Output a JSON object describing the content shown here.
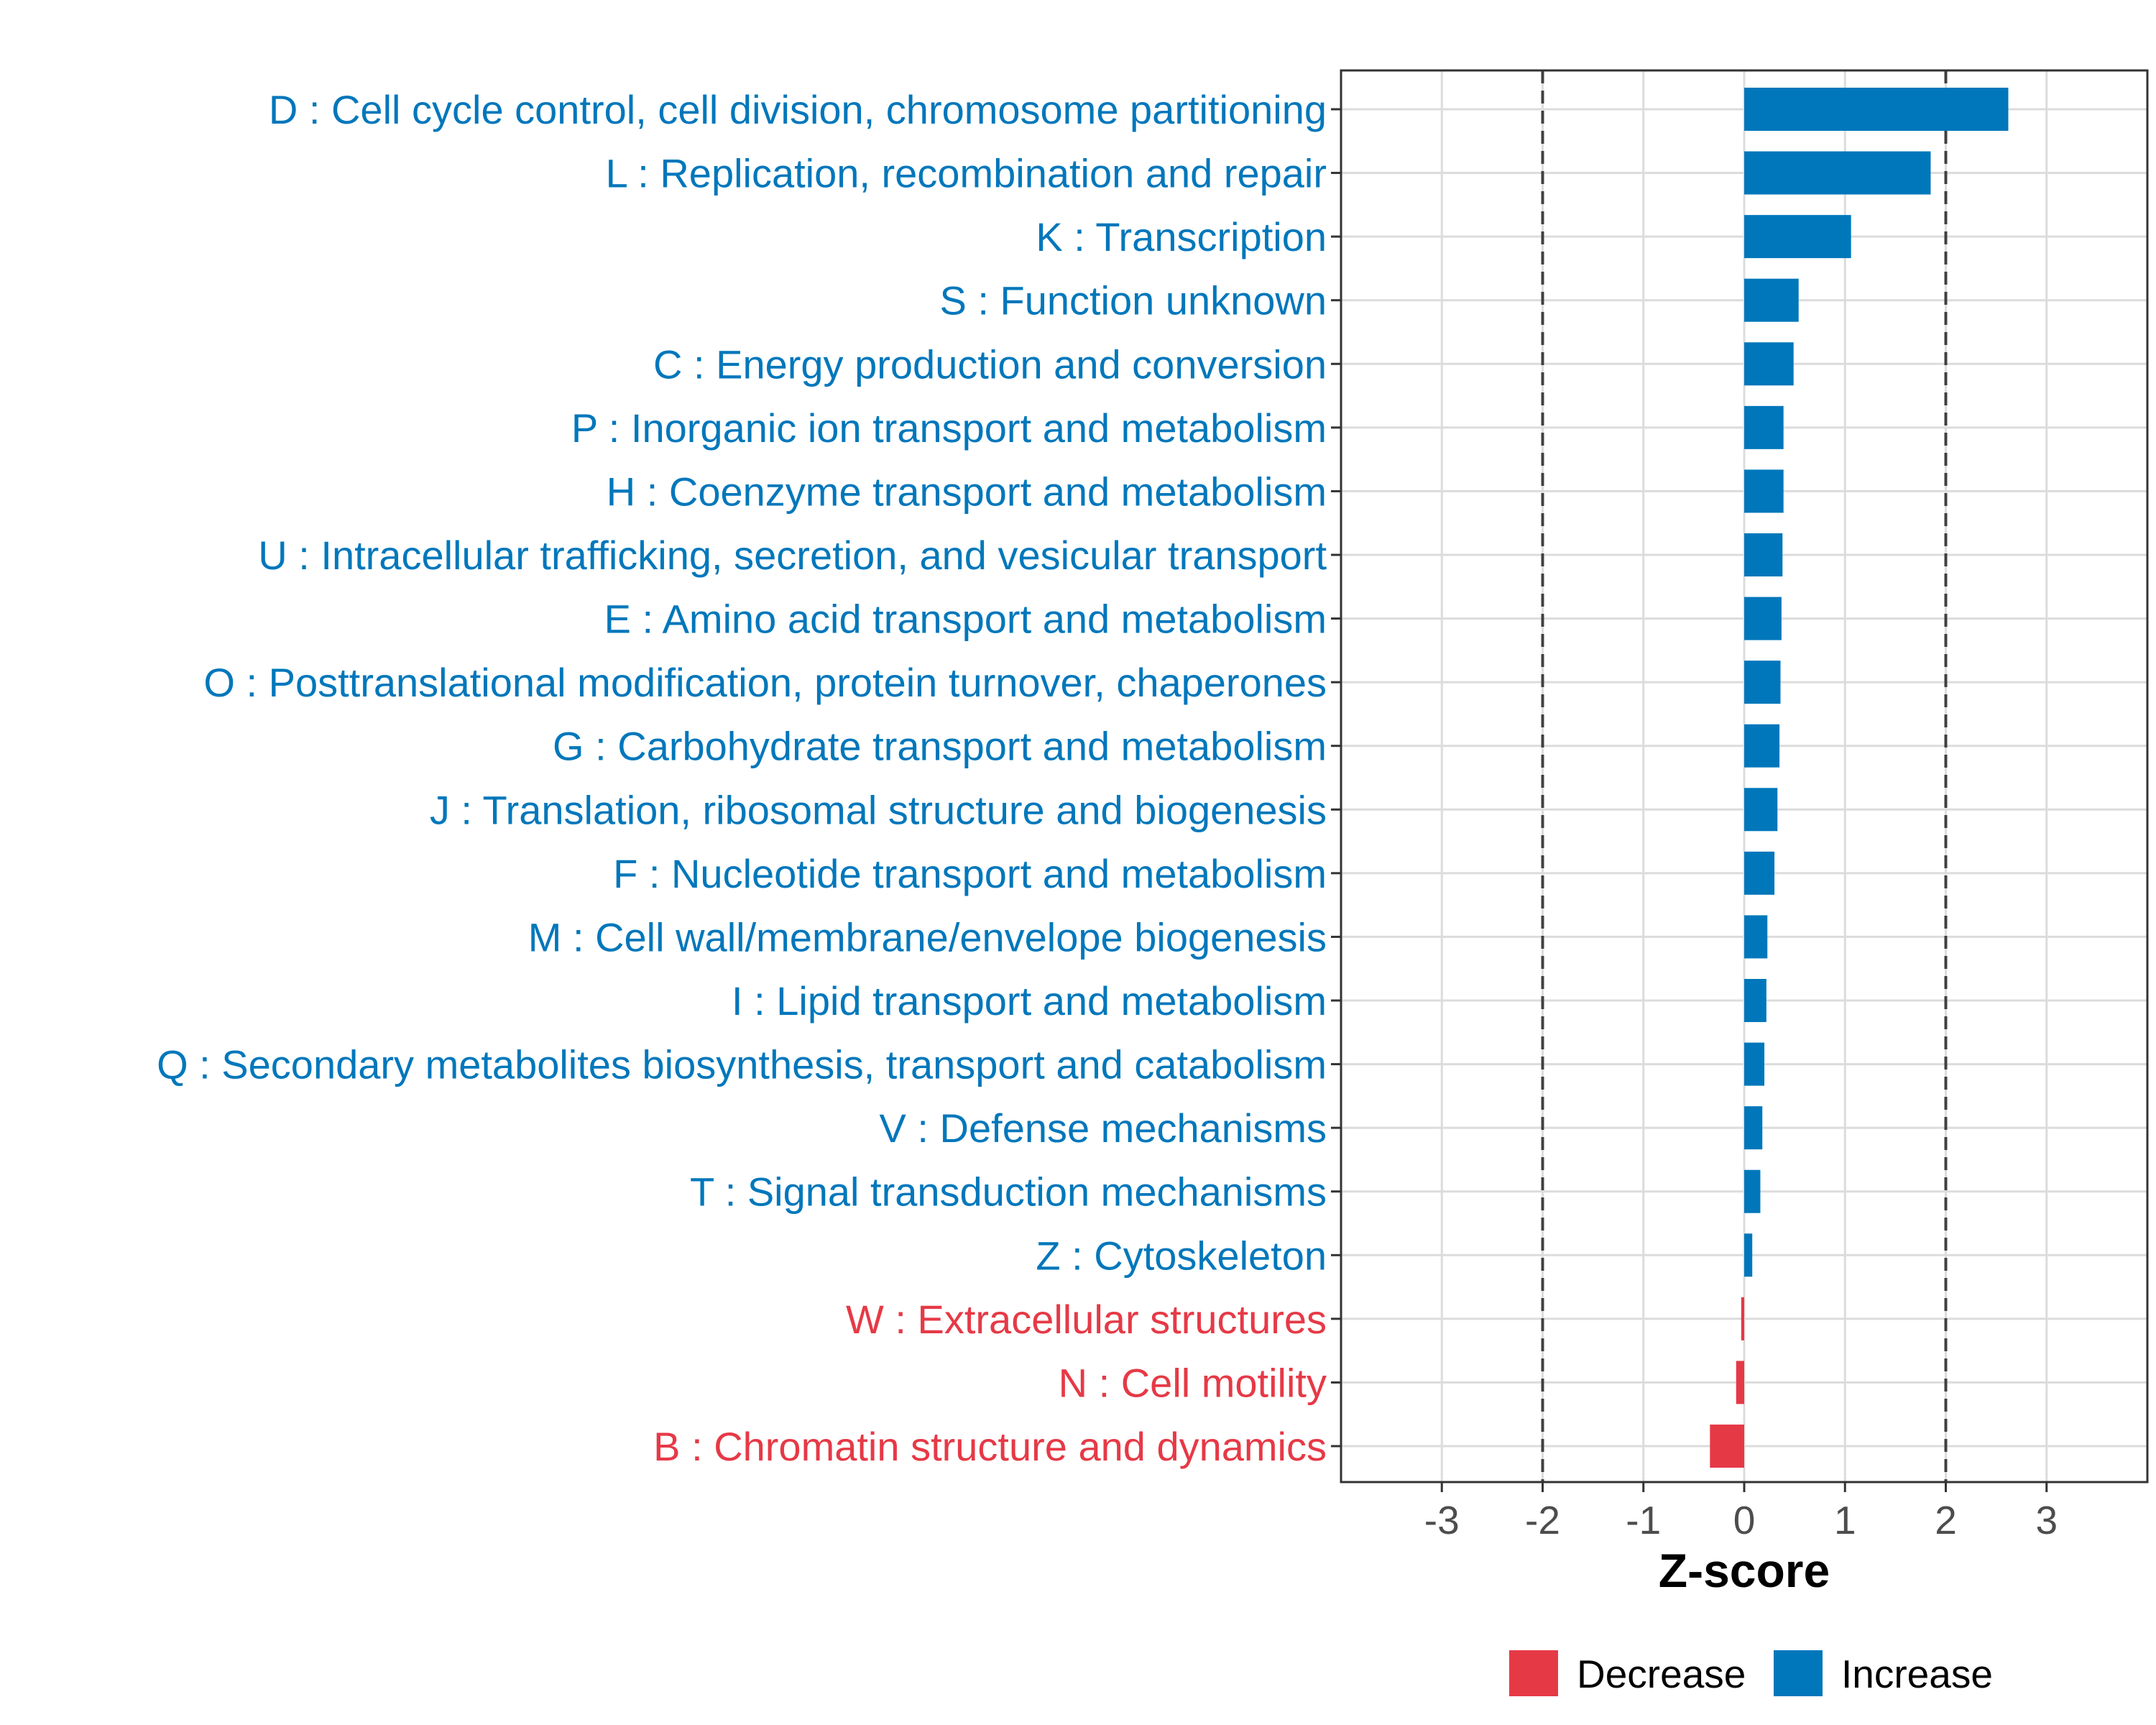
{
  "chart_data": {
    "type": "bar",
    "orientation": "horizontal",
    "xlabel": "Z-score",
    "xlim": [
      -4,
      4
    ],
    "xticks": [
      -3,
      -2,
      -1,
      0,
      1,
      2,
      3
    ],
    "xtick_labels": [
      "-3",
      "-2",
      "-1",
      "0",
      "1",
      "2",
      "3"
    ],
    "reference_lines": [
      -2,
      2
    ],
    "grid": true,
    "categories": [
      "D : Cell cycle control, cell division, chromosome partitioning",
      "L : Replication, recombination and repair",
      "K : Transcription",
      "S : Function unknown",
      "C : Energy production and conversion",
      "P : Inorganic ion transport and metabolism",
      "H : Coenzyme transport and metabolism",
      "U : Intracellular trafficking, secretion, and vesicular transport",
      "E : Amino acid transport and metabolism",
      "O : Posttranslational modification, protein turnover, chaperones",
      "G : Carbohydrate transport and metabolism",
      "J : Translation, ribosomal structure and biogenesis",
      "F : Nucleotide transport and metabolism",
      "M : Cell wall/membrane/envelope biogenesis",
      "I : Lipid transport and metabolism",
      "Q : Secondary metabolites biosynthesis, transport and catabolism",
      "V : Defense mechanisms",
      "T : Signal transduction mechanisms",
      "Z : Cytoskeleton",
      "W : Extracellular structures",
      "N : Cell motility",
      "B : Chromatin structure and dynamics"
    ],
    "values": [
      2.62,
      1.85,
      1.06,
      0.54,
      0.49,
      0.39,
      0.39,
      0.38,
      0.37,
      0.36,
      0.35,
      0.33,
      0.3,
      0.23,
      0.22,
      0.2,
      0.18,
      0.16,
      0.08,
      -0.03,
      -0.08,
      -0.34
    ],
    "groups": [
      "Increase",
      "Increase",
      "Increase",
      "Increase",
      "Increase",
      "Increase",
      "Increase",
      "Increase",
      "Increase",
      "Increase",
      "Increase",
      "Increase",
      "Increase",
      "Increase",
      "Increase",
      "Increase",
      "Increase",
      "Increase",
      "Increase",
      "Decrease",
      "Decrease",
      "Decrease"
    ],
    "legend": {
      "position": "bottom",
      "entries": [
        {
          "label": "Decrease",
          "color": "#e63946"
        },
        {
          "label": "Increase",
          "color": "#0077bb"
        }
      ]
    },
    "colors": {
      "Decrease": "#e63946",
      "Increase": "#0077bb",
      "grid": "#dcdcdc",
      "reference_line": "#404040",
      "panel_border": "#333333"
    }
  }
}
